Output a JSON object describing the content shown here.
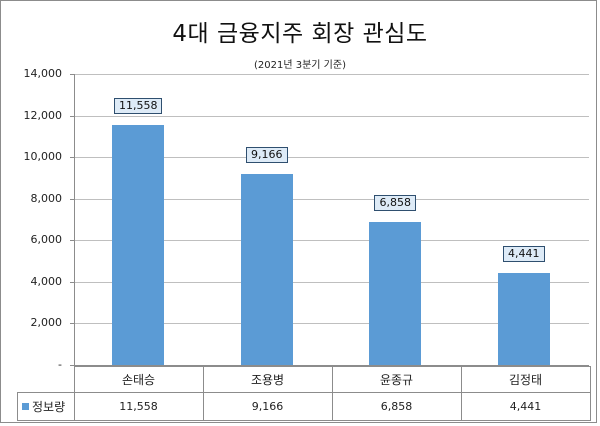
{
  "chart_data": {
    "type": "bar",
    "title": "4대 금융지주 회장 관심도",
    "subtitle": "(2021년 3분기 기준)",
    "xlabel": "",
    "ylabel": "",
    "categories": [
      "손태승",
      "조용병",
      "윤종규",
      "김정태"
    ],
    "series": [
      {
        "name": "정보량",
        "values": [
          11558,
          9166,
          6858,
          4441
        ],
        "color": "#5b9bd5"
      }
    ],
    "data_labels": [
      "11,558",
      "9,166",
      "6,858",
      "4,441"
    ],
    "ylim": [
      0,
      14000
    ],
    "yticks": [
      "-",
      "2,000",
      "4,000",
      "6,000",
      "8,000",
      "10,000",
      "12,000",
      "14,000"
    ],
    "grid": true,
    "legend_position": "data-table",
    "data_table": {
      "header": [
        "",
        "손태승",
        "조용병",
        "윤종규",
        "김정태"
      ],
      "rows": [
        [
          "정보량",
          "11,558",
          "9,166",
          "6,858",
          "4,441"
        ]
      ]
    }
  }
}
